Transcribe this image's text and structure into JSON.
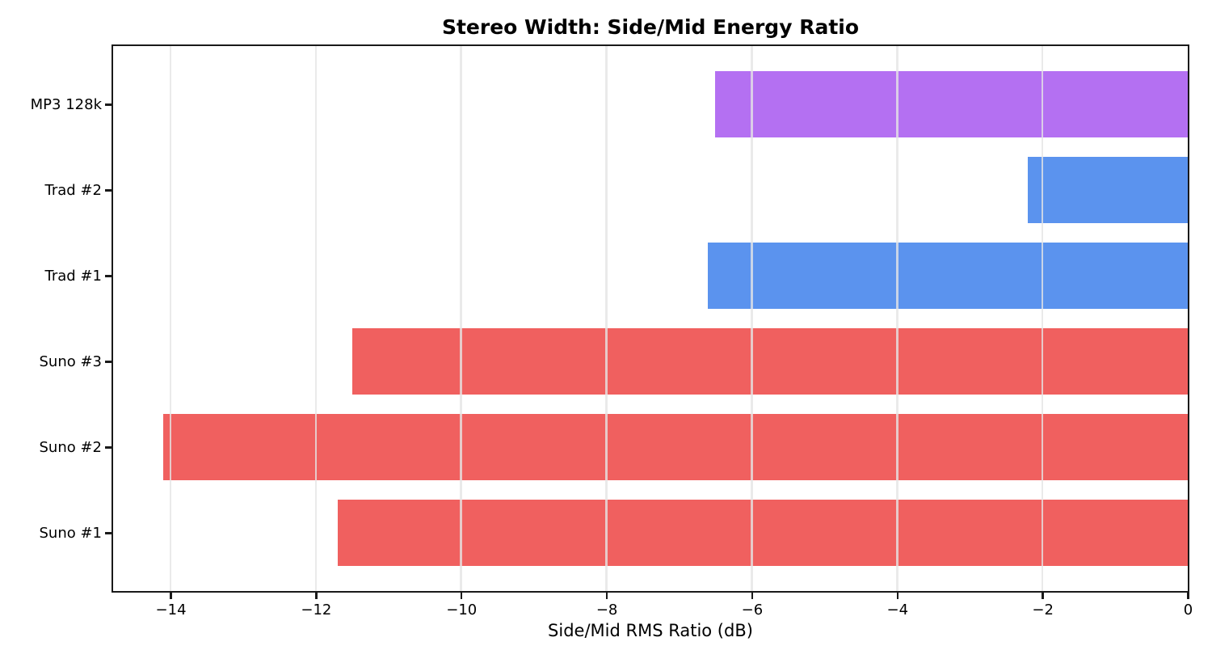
{
  "chart_data": {
    "type": "bar",
    "orientation": "horizontal",
    "title": "Stereo Width: Side/Mid Energy Ratio",
    "xlabel": "Side/Mid RMS Ratio (dB)",
    "ylabel": "",
    "row_order": "top_to_bottom",
    "categories": [
      "MP3 128k",
      "Trad #2",
      "Trad #1",
      "Suno #3",
      "Suno #2",
      "Suno #1"
    ],
    "values": [
      -6.5,
      -2.2,
      -6.6,
      -11.5,
      -14.1,
      -11.7
    ],
    "bars": [
      {
        "category": "MP3 128k",
        "value": -6.5,
        "color": "#b470f2"
      },
      {
        "category": "Trad #2",
        "value": -2.2,
        "color": "#5b93ee"
      },
      {
        "category": "Trad #1",
        "value": -6.6,
        "color": "#5b93ee"
      },
      {
        "category": "Suno #3",
        "value": -11.5,
        "color": "#f0605f"
      },
      {
        "category": "Suno #2",
        "value": -14.1,
        "color": "#f0605f"
      },
      {
        "category": "Suno #1",
        "value": -11.7,
        "color": "#f0605f"
      }
    ],
    "xlim": [
      -14.79,
      0
    ],
    "xticks": [
      -14,
      -12,
      -10,
      -8,
      -6,
      -4,
      -2,
      0
    ],
    "xtick_labels": [
      "−14",
      "−12",
      "−10",
      "−8",
      "−6",
      "−4",
      "−2",
      "0"
    ],
    "grid": true,
    "grid_axis": "x",
    "legend": false,
    "colors": {
      "suno_red": "#f0605f",
      "trad_blue": "#5b93ee",
      "mp3_purple": "#b470f2",
      "axis": "#1a1a1a",
      "grid": "#e5e5e5",
      "background": "#ffffff"
    }
  }
}
